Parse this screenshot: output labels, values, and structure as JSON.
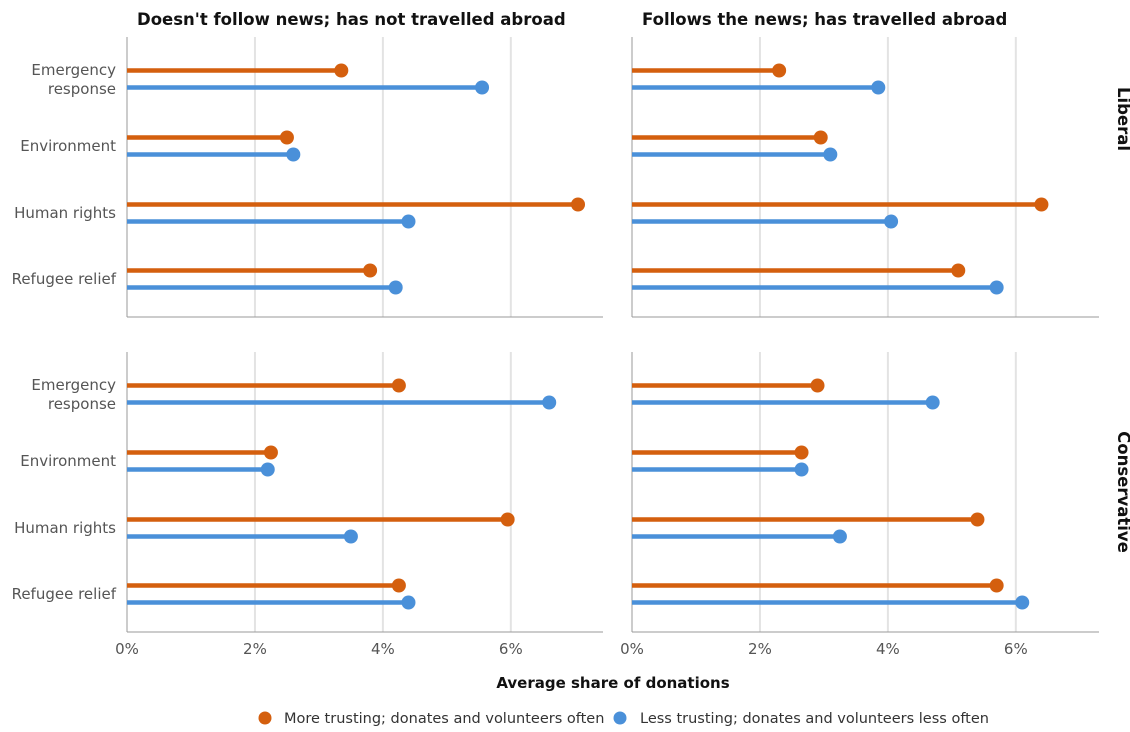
{
  "chart_data": {
    "type": "lollipop",
    "xlabel": "Average share of donations",
    "x_ticks": [
      "0%",
      "2%",
      "4%",
      "6%"
    ],
    "x_tick_values": [
      0,
      2,
      4,
      6
    ],
    "xlim": [
      0,
      7.3
    ],
    "categories": [
      "Emergency response",
      "Environment",
      "Human rights",
      "Refugee relief"
    ],
    "category_lines": [
      [
        "Emergency",
        "response"
      ],
      [
        "Environment"
      ],
      [
        "Human rights"
      ],
      [
        "Refugee relief"
      ]
    ],
    "columns": [
      "Doesn't follow news; has not travelled abroad",
      "Follows the news; has travelled abroad"
    ],
    "rows": [
      "Liberal",
      "Conservative"
    ],
    "legend_position": "bottom",
    "series": [
      {
        "name": "More trusting; donates and volunteers often",
        "color": "#d45f0e",
        "values": [
          [
            [
              3.35,
              2.5,
              7.05,
              3.8
            ],
            [
              2.3,
              2.95,
              6.4,
              5.1
            ]
          ],
          [
            [
              4.25,
              2.25,
              5.95,
              4.25
            ],
            [
              2.9,
              2.65,
              5.4,
              5.7
            ]
          ]
        ]
      },
      {
        "name": "Less trusting; donates and volunteers less often",
        "color": "#4a90d9",
        "values": [
          [
            [
              5.55,
              2.6,
              4.4,
              4.2
            ],
            [
              3.85,
              3.1,
              4.05,
              5.7
            ]
          ],
          [
            [
              6.6,
              2.2,
              3.5,
              4.4
            ],
            [
              4.7,
              2.65,
              3.25,
              6.1
            ]
          ]
        ]
      }
    ]
  }
}
